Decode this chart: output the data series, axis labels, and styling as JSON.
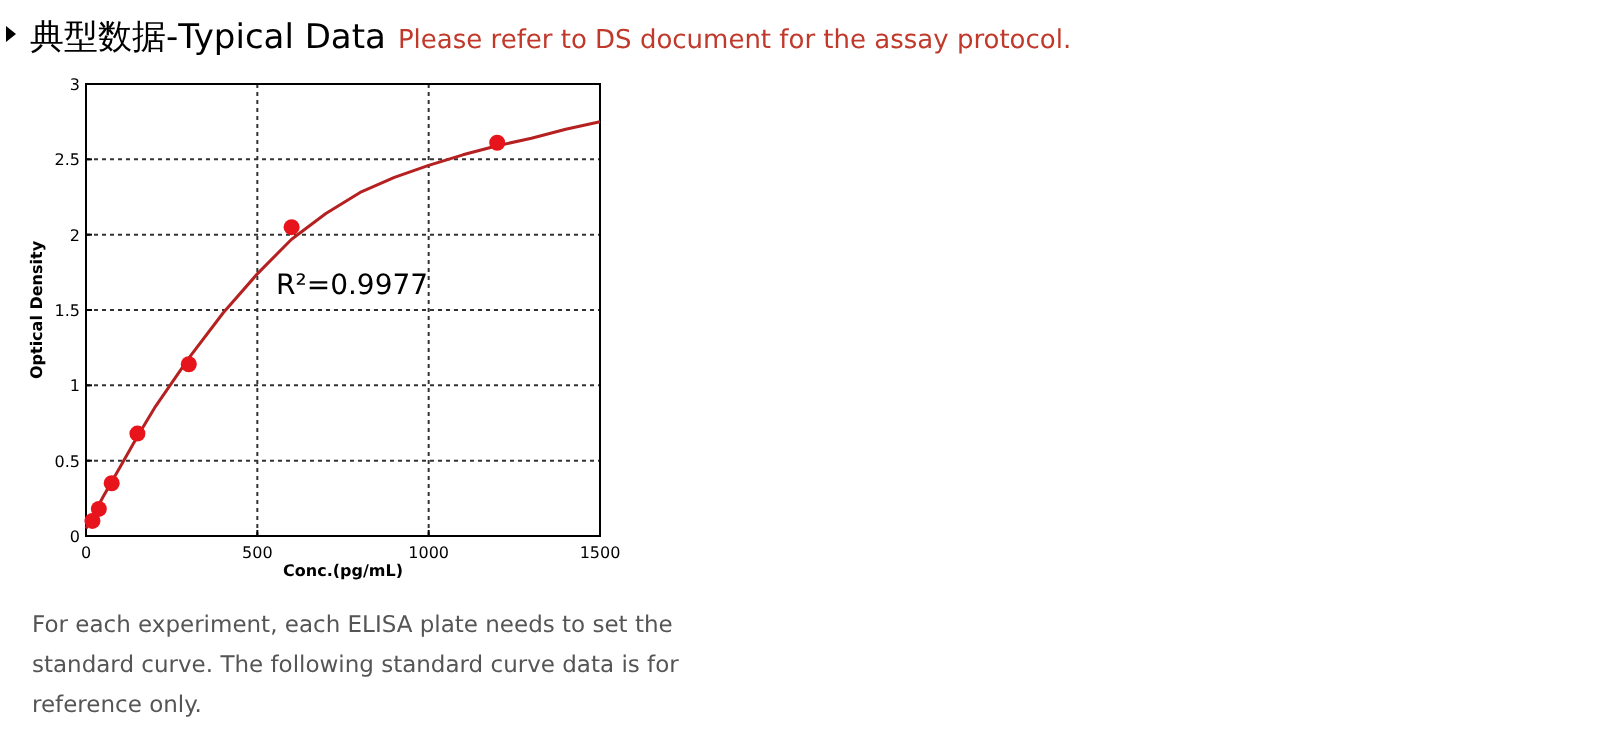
{
  "chart_data": {
    "type": "scatter",
    "title": "典型数据-Typical Data",
    "subtitle": "Please refer to DS document for the assay protocol.",
    "xlabel": "Conc.(pg/mL)",
    "ylabel": "Optical Density",
    "series": [
      {
        "type": "line",
        "color": "#b52020",
        "x": [
          0,
          50,
          100,
          150,
          200,
          300,
          400,
          500,
          600,
          700,
          800,
          900,
          1000,
          1100,
          1200,
          1300,
          1400,
          1500
        ],
        "values": [
          0.05,
          0.26,
          0.46,
          0.66,
          0.85,
          1.18,
          1.48,
          1.74,
          1.97,
          2.14,
          2.28,
          2.38,
          2.46,
          2.53,
          2.59,
          2.64,
          2.7,
          2.75
        ]
      },
      {
        "marker": "circle",
        "color": "#e8141c",
        "x": [
          18.75,
          37.5,
          75,
          150,
          300,
          600,
          1200
        ],
        "values": [
          0.1,
          0.18,
          0.35,
          0.68,
          1.14,
          2.05,
          2.61
        ]
      }
    ],
    "xlim": [
      0,
      1500
    ],
    "ylim": [
      0,
      3
    ],
    "xticks": [
      0,
      500,
      1000,
      1500
    ],
    "yticks": [
      0,
      0.5,
      1,
      1.5,
      2,
      2.5,
      3
    ],
    "grid": true,
    "annotations": [
      "R²=0.9977",
      "For each experiment, each ELISA plate needs to set the standard curve. The following standard curve data is for reference only."
    ]
  }
}
